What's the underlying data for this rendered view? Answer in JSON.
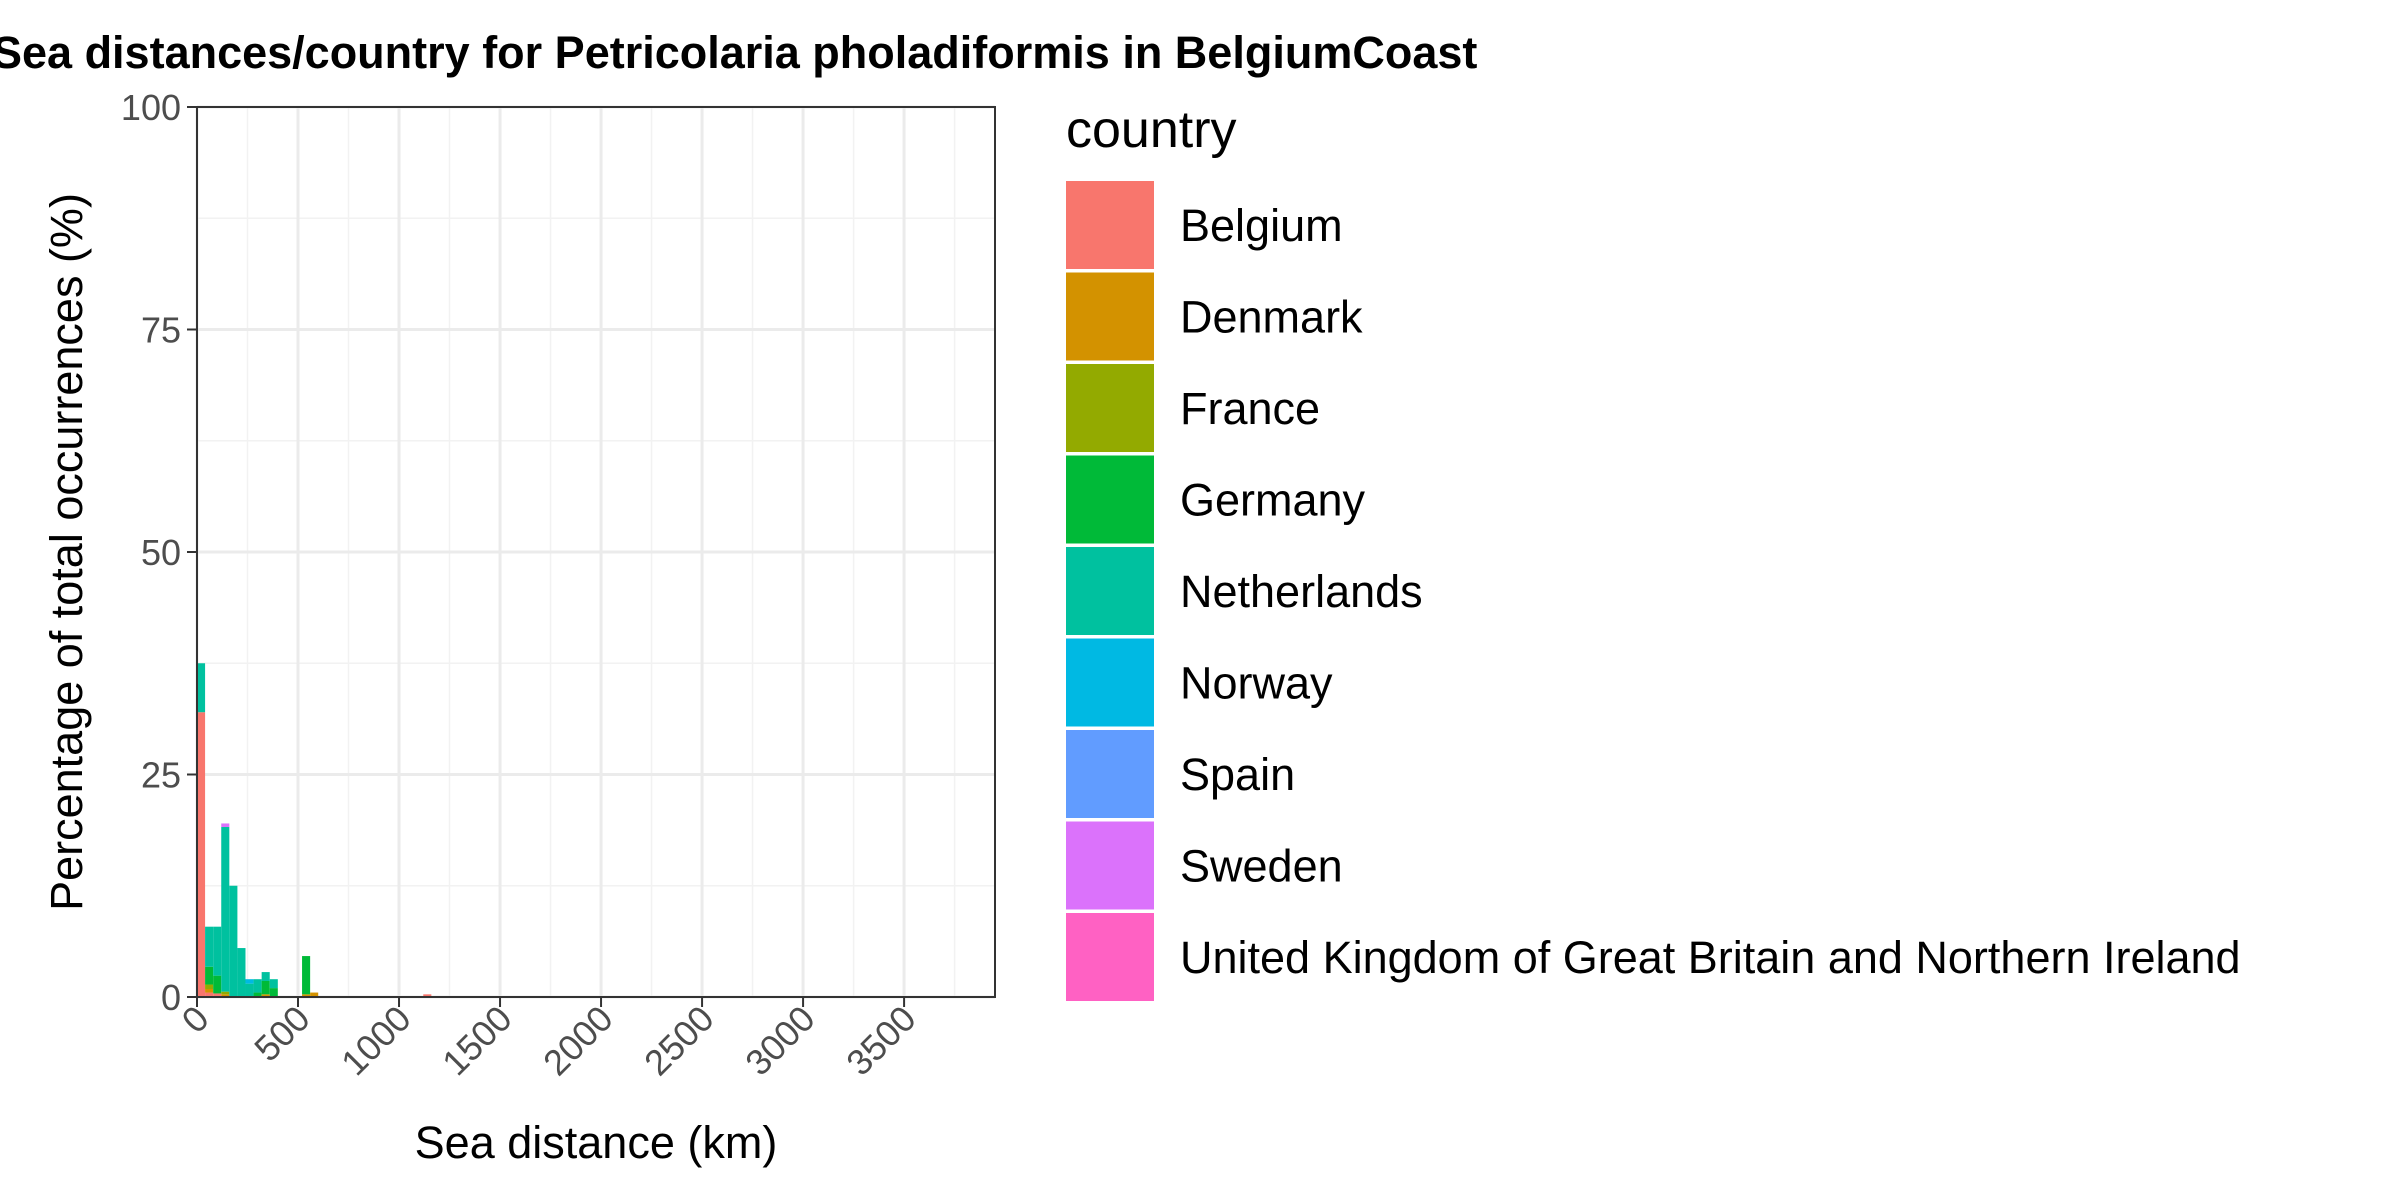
{
  "chart_data": {
    "type": "bar",
    "stacked": true,
    "title": "Sea distances/country for Petricolaria pholadiformis in BelgiumCoast",
    "xlabel": "Sea distance (km)",
    "ylabel": "Percentage of total occurrences (%)",
    "xlim": [
      0,
      3950
    ],
    "ylim": [
      0,
      100
    ],
    "x_ticks": [
      0,
      500,
      1000,
      1500,
      2000,
      2500,
      3000,
      3500
    ],
    "y_ticks": [
      0,
      25,
      50,
      75,
      100
    ],
    "grid": true,
    "legend_title": "country",
    "legend_position": "right",
    "bin_width": 40,
    "x": [
      20,
      60,
      100,
      140,
      180,
      220,
      260,
      300,
      340,
      380,
      420,
      460,
      500,
      540,
      580,
      1140
    ],
    "series": [
      {
        "name": "Belgium",
        "color": "#F8766D",
        "values": [
          32.0,
          0.5,
          0.4,
          0.0,
          0.0,
          0.0,
          0.0,
          0.0,
          0.0,
          0.0,
          0.0,
          0.0,
          0.0,
          0.0,
          0.0,
          0.3
        ]
      },
      {
        "name": "Denmark",
        "color": "#D39200",
        "values": [
          0.0,
          0.4,
          0.0,
          0.3,
          0.0,
          0.0,
          0.0,
          0.0,
          0.3,
          0.0,
          0.0,
          0.0,
          0.0,
          0.3,
          0.5,
          0.0
        ]
      },
      {
        "name": "France",
        "color": "#93AA00",
        "values": [
          0.0,
          0.5,
          0.0,
          0.3,
          0.0,
          0.0,
          0.0,
          0.0,
          0.0,
          0.0,
          0.0,
          0.0,
          0.0,
          0.0,
          0.0,
          0.0
        ]
      },
      {
        "name": "Germany",
        "color": "#00BA38",
        "values": [
          0.0,
          2.0,
          2.0,
          0.0,
          0.0,
          0.0,
          0.0,
          0.5,
          1.5,
          1.0,
          0.0,
          0.0,
          0.0,
          4.3,
          0.0,
          0.0
        ]
      },
      {
        "name": "Netherlands",
        "color": "#00C19F",
        "values": [
          5.5,
          4.5,
          5.5,
          18.5,
          12.5,
          5.5,
          1.5,
          1.5,
          1.0,
          1.0,
          0.0,
          0.0,
          0.0,
          0.0,
          0.0,
          0.0
        ]
      },
      {
        "name": "Norway",
        "color": "#00B9E3",
        "values": [
          0.0,
          0.0,
          0.0,
          0.0,
          0.0,
          0.0,
          0.5,
          0.0,
          0.0,
          0.0,
          0.0,
          0.0,
          0.0,
          0.0,
          0.0,
          0.0
        ]
      },
      {
        "name": "Spain",
        "color": "#619CFF",
        "values": [
          0.0,
          0.0,
          0.0,
          0.0,
          0.0,
          0.0,
          0.0,
          0.0,
          0.0,
          0.0,
          0.0,
          0.0,
          0.0,
          0.0,
          0.0,
          0.0
        ]
      },
      {
        "name": "Sweden",
        "color": "#DB72FB",
        "values": [
          0.0,
          0.0,
          0.0,
          0.4,
          0.0,
          0.0,
          0.0,
          0.0,
          0.0,
          0.0,
          0.0,
          0.0,
          0.0,
          0.0,
          0.0,
          0.0
        ]
      },
      {
        "name": "United Kingdom of Great Britain and Northern Ireland",
        "color": "#FF61C3",
        "values": [
          0.0,
          0.0,
          0.0,
          0.0,
          0.0,
          0.0,
          0.0,
          0.0,
          0.0,
          0.0,
          0.0,
          0.0,
          0.0,
          0.0,
          0.0,
          0.0
        ]
      }
    ]
  }
}
